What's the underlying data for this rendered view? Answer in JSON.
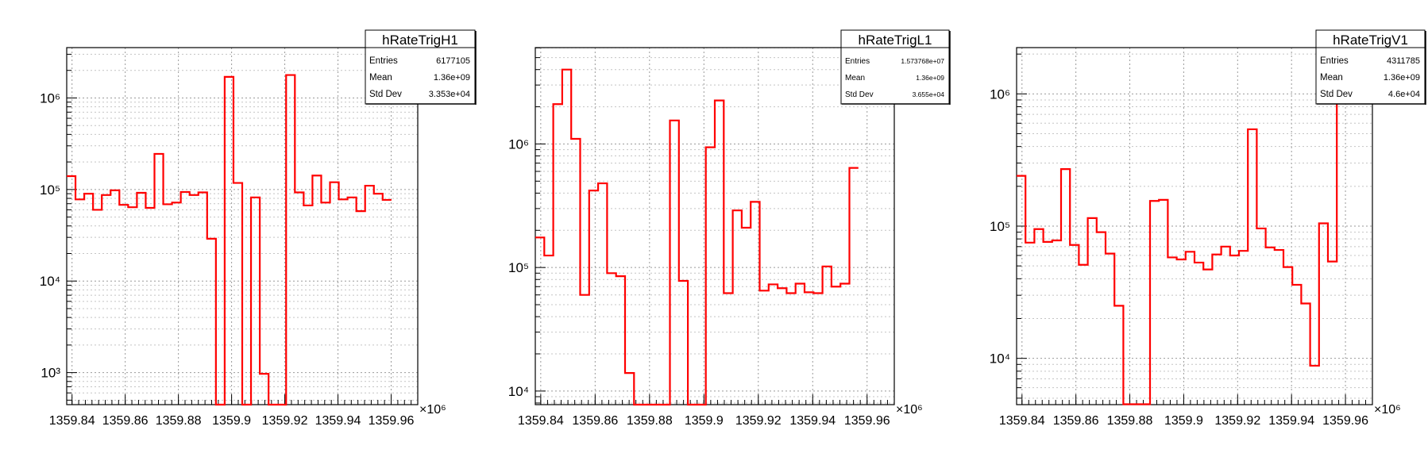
{
  "chart_data": [
    {
      "type": "histogram",
      "title": "hRateTrigH1",
      "log_y": true,
      "grid": true,
      "x_multiplier_label": "×10⁶",
      "xlim": [
        1359.838,
        1359.97
      ],
      "ylim_log10": [
        2.65,
        6.55
      ],
      "x_ticks": [
        1359.84,
        1359.86,
        1359.88,
        1359.9,
        1359.92,
        1359.94,
        1359.96
      ],
      "x_tick_labels": [
        "1359.84",
        "1359.86",
        "1359.88",
        "1359.9",
        "1359.92",
        "1359.94",
        "1359.96"
      ],
      "y_ticks": [
        3,
        4,
        5,
        6
      ],
      "y_tick_labels": [
        "10³",
        "10⁴",
        "10⁵",
        "10⁶"
      ],
      "stats": {
        "Entries": "6177105",
        "Mean": "1.36e+09",
        "Std Dev": "3.353e+04"
      },
      "bin_edges_start": 1359.838,
      "bin_width": 0.0033,
      "values": [
        140000,
        78000,
        90000,
        60000,
        87000,
        98000,
        68000,
        64000,
        92000,
        63000,
        245000,
        69000,
        72000,
        94000,
        87000,
        93000,
        29000,
        0,
        1700000,
        118000,
        0,
        82000,
        970,
        0,
        0,
        1780000,
        93000,
        67000,
        142000,
        72000,
        120000,
        78000,
        82000,
        58000,
        110000,
        90000,
        77000
      ]
    },
    {
      "type": "histogram",
      "title": "hRateTrigL1",
      "log_y": true,
      "grid": true,
      "x_multiplier_label": "×10⁶",
      "xlim": [
        1359.838,
        1359.97
      ],
      "ylim_log10": [
        3.89,
        6.78
      ],
      "x_ticks": [
        1359.84,
        1359.86,
        1359.88,
        1359.9,
        1359.92,
        1359.94,
        1359.96
      ],
      "x_tick_labels": [
        "1359.84",
        "1359.86",
        "1359.88",
        "1359.9",
        "1359.92",
        "1359.94",
        "1359.96"
      ],
      "y_ticks": [
        4,
        5,
        6
      ],
      "y_tick_labels": [
        "10⁴",
        "10⁵",
        "10⁶"
      ],
      "stats": {
        "Entries": "1.573768e+07",
        "Mean": "1.36e+09",
        "Std Dev": "3.655e+04"
      },
      "bin_edges_start": 1359.838,
      "bin_width": 0.0033,
      "values": [
        175000,
        125000,
        2100000,
        4000000,
        1100000,
        60000,
        420000,
        480000,
        90000,
        85000,
        14000,
        7000,
        7000,
        7000,
        7000,
        1550000,
        78000,
        7000,
        7000,
        940000,
        2250000,
        62000,
        290000,
        210000,
        340000,
        65000,
        73000,
        68000,
        62000,
        74000,
        63000,
        62000,
        102000,
        70000,
        74000,
        640000
      ]
    },
    {
      "type": "histogram",
      "title": "hRateTrigV1",
      "log_y": true,
      "grid": true,
      "x_multiplier_label": "×10⁶",
      "xlim": [
        1359.838,
        1359.97
      ],
      "ylim_log10": [
        3.65,
        6.35
      ],
      "x_ticks": [
        1359.84,
        1359.86,
        1359.88,
        1359.9,
        1359.92,
        1359.94,
        1359.96
      ],
      "x_tick_labels": [
        "1359.84",
        "1359.86",
        "1359.88",
        "1359.9",
        "1359.92",
        "1359.94",
        "1359.96"
      ],
      "y_ticks": [
        4,
        5,
        6
      ],
      "y_tick_labels": [
        "10⁴",
        "10⁵",
        "10⁶"
      ],
      "stats": {
        "Entries": "4311785",
        "Mean": "1.36e+09",
        "Std Dev": "4.6e+04"
      },
      "bin_edges_start": 1359.838,
      "bin_width": 0.0033,
      "values": [
        240000,
        75000,
        95000,
        76000,
        78000,
        270000,
        72000,
        51000,
        115000,
        90000,
        62000,
        25000,
        4500,
        4500,
        4500,
        155000,
        158000,
        58000,
        56000,
        64000,
        53000,
        47000,
        61000,
        70000,
        60000,
        65000,
        540000,
        96000,
        69000,
        66000,
        49000,
        36000,
        26000,
        8800,
        105000,
        54000,
        900000
      ]
    }
  ]
}
